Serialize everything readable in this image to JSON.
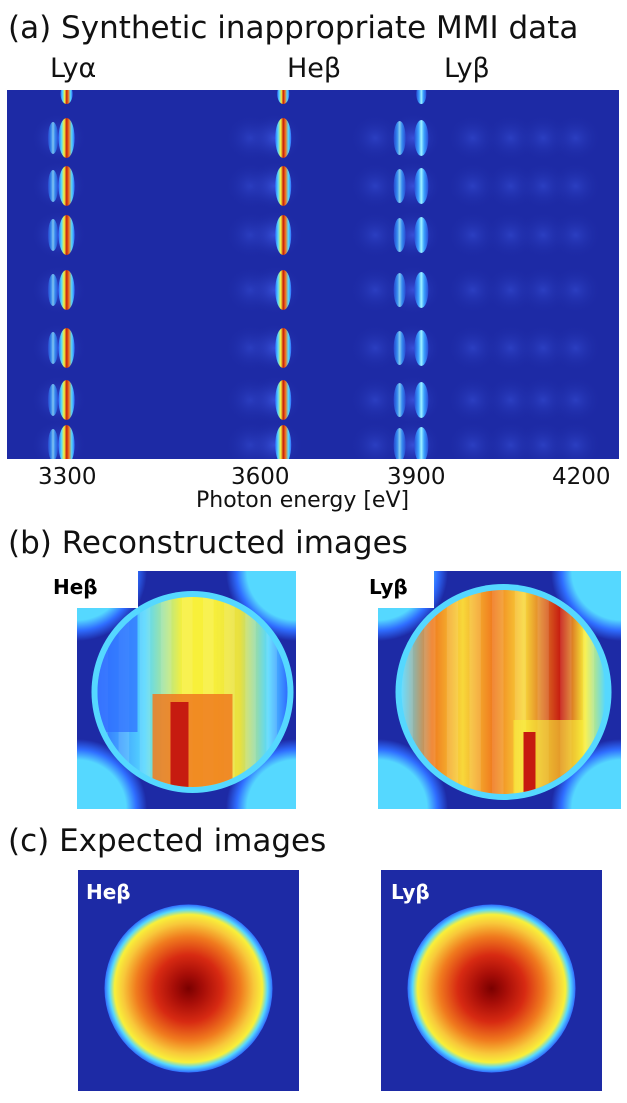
{
  "panel_a": {
    "title": "(a) Synthetic inappropriate MMI data",
    "line_labels": [
      "Lyα",
      "Heβ",
      "Lyβ"
    ],
    "xlabel": "Photon energy [eV]",
    "x_ticks": [
      "3300",
      "3600",
      "3900",
      "4200"
    ]
  },
  "panel_b": {
    "title": "(b)   Reconstructed images",
    "labels": [
      "Heβ",
      "Lyβ"
    ]
  },
  "panel_c": {
    "title": "(c)   Expected images",
    "labels": [
      "Heβ",
      "Lyβ"
    ]
  },
  "chart_data": {
    "type": "heatmap",
    "title": "(a) Synthetic inappropriate MMI data",
    "xlabel": "Photon energy [eV]",
    "ylabel": "",
    "x_ticks": [
      3300,
      3600,
      3900,
      4200
    ],
    "xlim": [
      3200,
      4330
    ],
    "lines": [
      {
        "label": "Lyα",
        "energy_eV": 3310
      },
      {
        "label": "Heβ",
        "energy_eV": 3710
      },
      {
        "label": "Lyβ",
        "energy_eV": 3965
      }
    ],
    "colors": {
      "background": "#1d2aa5",
      "cool": "#2f6dff",
      "cyan": "#55d8ff",
      "yellow": "#f8f03a",
      "orange": "#f07a1e",
      "red": "#c61b10",
      "dark_red": "#7a0000"
    }
  }
}
